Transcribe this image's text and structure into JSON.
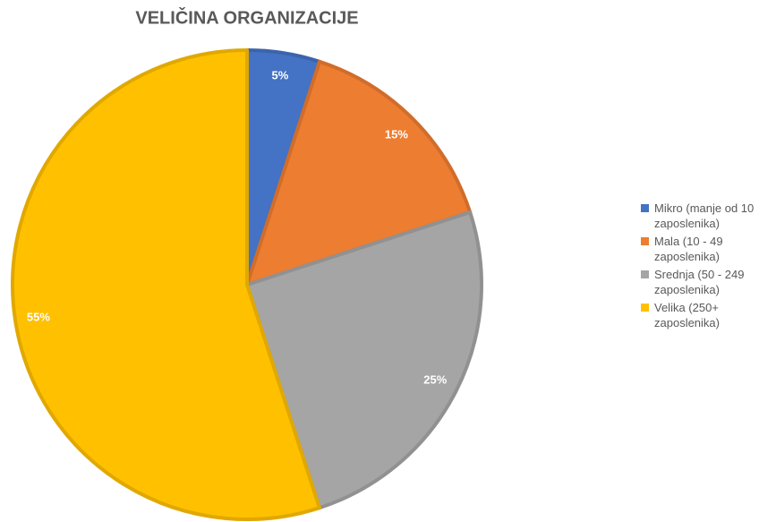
{
  "chart_data": {
    "type": "pie",
    "title": "VELIČINA ORGANIZACIJE",
    "categories": [
      "Mikro (manje od 10 zaposlenika)",
      "Mala (10 - 49 zaposlenika)",
      "Srednja (50 - 249 zaposlenika)",
      "Velika (250+ zaposlenika)"
    ],
    "values": [
      5,
      15,
      25,
      55
    ],
    "value_labels": [
      "5%",
      "15%",
      "25%",
      "55%"
    ],
    "colors": [
      "#4472c4",
      "#ed7d31",
      "#a5a5a5",
      "#ffc000"
    ],
    "legend": "right"
  }
}
